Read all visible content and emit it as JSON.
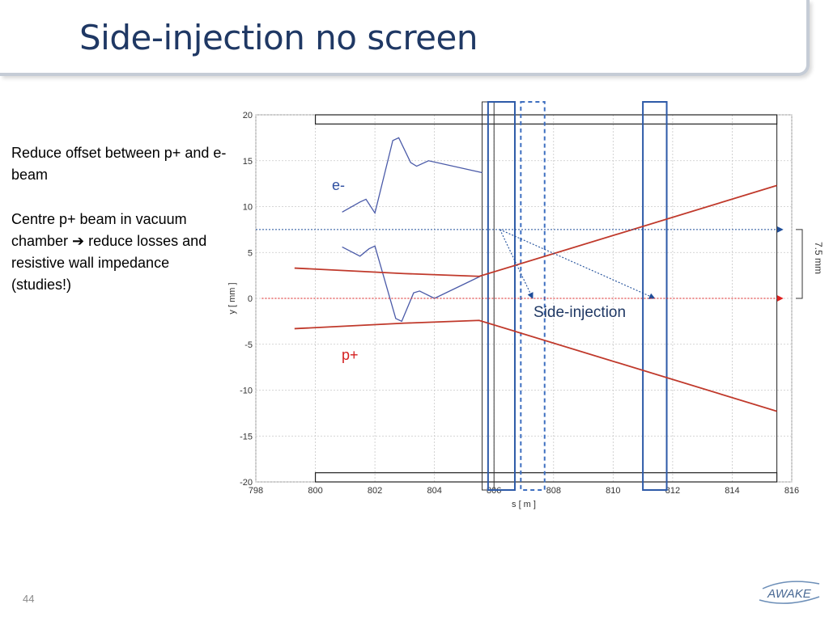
{
  "slide": {
    "title": "Side-injection no screen",
    "page_number": "44",
    "logo_text": "AWAKE"
  },
  "notes": {
    "line1": "Reduce offset between p+ and e- beam",
    "line2": "Centre p+ beam in vacuum chamber ➔ reduce losses and resistive wall impedance (studies!)"
  },
  "chart_data": {
    "type": "line",
    "xlabel": "s [ m ]",
    "ylabel": "y [ mm ]",
    "xlim": [
      798,
      816
    ],
    "ylim": [
      -20,
      20
    ],
    "x_ticks": [
      798,
      800,
      802,
      804,
      806,
      808,
      810,
      812,
      814,
      816
    ],
    "y_ticks": [
      20,
      15,
      10,
      5,
      0,
      -5,
      -10,
      -15,
      -20
    ],
    "grid": true,
    "series": [
      {
        "name": "e-",
        "color": "#4a5aa8",
        "x": [
          800.9,
          801.5,
          801.7,
          802.0,
          802.6,
          802.8,
          803.2,
          803.4,
          803.8,
          805.6
        ],
        "y": [
          9.4,
          10.5,
          10.8,
          9.3,
          17.2,
          17.5,
          14.8,
          14.4,
          15.0,
          13.7
        ]
      },
      {
        "name": "e-",
        "color": "#4a5aa8",
        "x": [
          800.9,
          801.5,
          801.8,
          802.0,
          802.7,
          802.9,
          803.3,
          803.5,
          804.0,
          805.6
        ],
        "y": [
          5.6,
          4.6,
          5.4,
          5.7,
          -2.2,
          -2.5,
          0.6,
          0.8,
          0.0,
          2.5
        ]
      },
      {
        "name": "p+",
        "color": "#c0392b",
        "x": [
          799.3,
          803.0,
          805.5,
          815.5
        ],
        "y": [
          3.3,
          2.7,
          2.4,
          12.3
        ]
      },
      {
        "name": "p+",
        "color": "#c0392b",
        "x": [
          799.3,
          803.0,
          805.5,
          815.5
        ],
        "y": [
          -3.3,
          -2.7,
          -2.4,
          -12.3
        ]
      },
      {
        "name": "Side-injection",
        "color": "#1f4e9a",
        "x": [
          798.0,
          815.7
        ],
        "y": [
          7.5,
          7.5
        ]
      },
      {
        "name": "Side-injection",
        "color": "#1f4e9a",
        "x": [
          806.2,
          807.3
        ],
        "y": [
          7.5,
          0.0
        ]
      },
      {
        "name": "Side-injection",
        "color": "#1f4e9a",
        "x": [
          806.2,
          811.4
        ],
        "y": [
          7.5,
          0.0
        ]
      },
      {
        "name": "axis",
        "color": "#e02020",
        "x": [
          798.2,
          815.7
        ],
        "y": [
          0.0,
          0.0
        ]
      }
    ],
    "chamber": {
      "x": [
        800.0,
        815.5
      ],
      "y_top": 19.0,
      "y_bottom": -19.0
    },
    "boxes": [
      {
        "x0": 805.6,
        "x1": 806.0,
        "style": "thin"
      },
      {
        "x0": 805.8,
        "x1": 806.7,
        "style": "solid"
      },
      {
        "x0": 806.9,
        "x1": 807.7,
        "style": "dashed"
      },
      {
        "x0": 811.0,
        "x1": 811.8,
        "style": "solid"
      }
    ],
    "annotations": {
      "e_minus": "e-",
      "p_plus": "p+",
      "side_injection": "Side-injection",
      "offset": "7.5 mm"
    }
  }
}
